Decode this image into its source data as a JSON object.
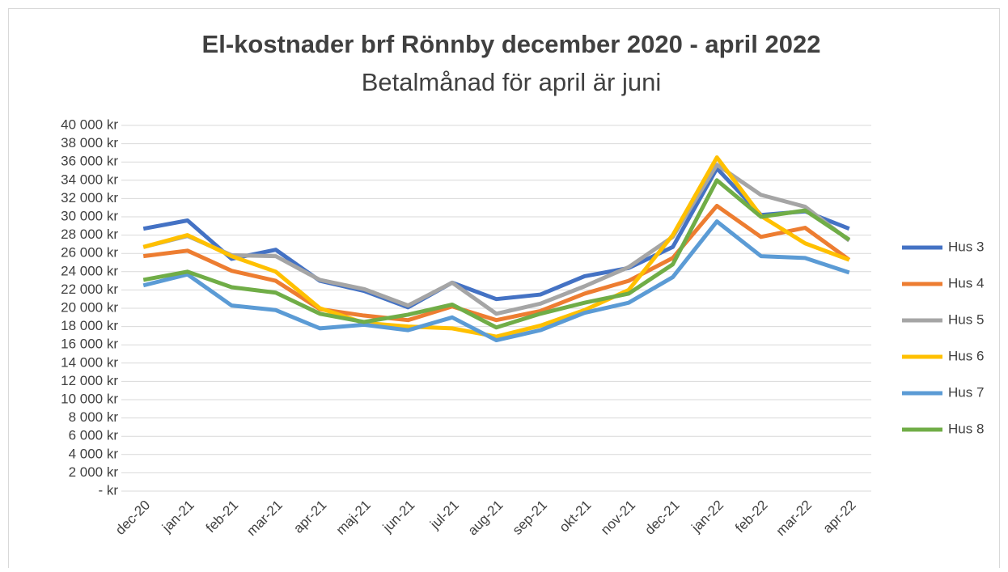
{
  "chart_data": {
    "type": "line",
    "title": "El-kostnader brf Rönnby december 2020 - april 2022",
    "subtitle": "Betalmånad för april är juni",
    "categories": [
      "dec-20",
      "jan-21",
      "feb-21",
      "mar-21",
      "apr-21",
      "maj-21",
      "jun-21",
      "jul-21",
      "aug-21",
      "sep-21",
      "okt-21",
      "nov-21",
      "dec-21",
      "jan-22",
      "feb-22",
      "mar-22",
      "apr-22"
    ],
    "series": [
      {
        "name": "Hus 3",
        "color": "#4472c4",
        "values": [
          28700,
          29600,
          25400,
          26400,
          23000,
          21900,
          20100,
          22800,
          21000,
          21500,
          23500,
          24400,
          26700,
          35300,
          30200,
          30600,
          28700
        ]
      },
      {
        "name": "Hus 4",
        "color": "#ed7d31",
        "values": [
          25700,
          26300,
          24100,
          23000,
          19900,
          19200,
          18700,
          20200,
          18700,
          19700,
          21600,
          23000,
          25500,
          31200,
          27800,
          28800,
          25300
        ]
      },
      {
        "name": "Hus 5",
        "color": "#a5a5a5",
        "values": [
          26700,
          27900,
          25800,
          25700,
          23100,
          22100,
          20300,
          22800,
          19400,
          20500,
          22400,
          24500,
          27800,
          35700,
          32400,
          31100,
          27400
        ]
      },
      {
        "name": "Hus 6",
        "color": "#ffc000",
        "values": [
          26700,
          28000,
          25700,
          24000,
          20000,
          18400,
          18000,
          17800,
          16900,
          18100,
          19800,
          22000,
          28000,
          36500,
          30100,
          27100,
          25300
        ]
      },
      {
        "name": "Hus 7",
        "color": "#5b9bd5",
        "values": [
          22500,
          23700,
          20300,
          19800,
          17800,
          18200,
          17600,
          19000,
          16500,
          17600,
          19500,
          20600,
          23400,
          29500,
          25700,
          25500,
          23900
        ]
      },
      {
        "name": "Hus 8",
        "color": "#70ad47",
        "values": [
          23100,
          24000,
          22300,
          21700,
          19400,
          18500,
          19300,
          20400,
          17900,
          19400,
          20600,
          21600,
          24800,
          34000,
          30000,
          30700,
          27500
        ]
      }
    ],
    "ylim": [
      0,
      40000
    ],
    "yticks": [
      {
        "value": 0,
        "label": "-   kr"
      },
      {
        "value": 2000,
        "label": "2 000 kr"
      },
      {
        "value": 4000,
        "label": "4 000 kr"
      },
      {
        "value": 6000,
        "label": "6 000 kr"
      },
      {
        "value": 8000,
        "label": "8 000 kr"
      },
      {
        "value": 10000,
        "label": "10 000 kr"
      },
      {
        "value": 12000,
        "label": "12 000 kr"
      },
      {
        "value": 14000,
        "label": "14 000 kr"
      },
      {
        "value": 16000,
        "label": "16 000 kr"
      },
      {
        "value": 18000,
        "label": "18 000 kr"
      },
      {
        "value": 20000,
        "label": "20 000 kr"
      },
      {
        "value": 22000,
        "label": "22 000 kr"
      },
      {
        "value": 24000,
        "label": "24 000 kr"
      },
      {
        "value": 26000,
        "label": "26 000 kr"
      },
      {
        "value": 28000,
        "label": "28 000 kr"
      },
      {
        "value": 30000,
        "label": "30 000 kr"
      },
      {
        "value": 32000,
        "label": "32 000 kr"
      },
      {
        "value": 34000,
        "label": "34 000 kr"
      },
      {
        "value": 36000,
        "label": "36 000 kr"
      },
      {
        "value": 38000,
        "label": "38 000 kr"
      },
      {
        "value": 40000,
        "label": "40 000 kr"
      }
    ],
    "grid": true,
    "legend": "right"
  }
}
